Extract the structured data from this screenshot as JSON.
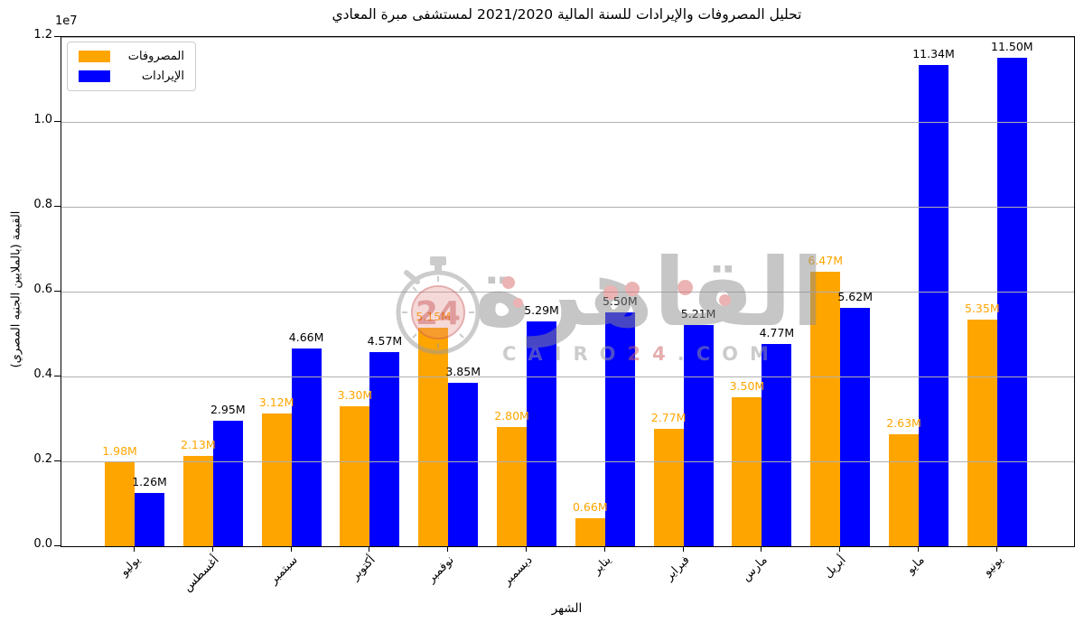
{
  "watermark": {
    "arabic": "القاهرة",
    "latin_prefix": "CAIRO",
    "latin_number": "24",
    "latin_suffix": ".COM",
    "badge": "24"
  },
  "chart_data": {
    "type": "bar",
    "title": "تحليل المصروفات والإيرادات للسنة المالية 2021/2020 لمستشفى مبرة المعادي",
    "xlabel": "الشهر",
    "ylabel": "القيمة (بالملايين الجنيه المصري)",
    "offset_text": "1e7",
    "categories": [
      "يوليو",
      "أغسطس",
      "سبتمبر",
      "أكتوبر",
      "نوفمبر",
      "ديسمبر",
      "يناير",
      "فبراير",
      "مارس",
      "أبريل",
      "مايو",
      "يونيو"
    ],
    "series": [
      {
        "name": "المصروفات",
        "color": "#FFA500",
        "label_color": "#FFA500",
        "values_millions": [
          1.98,
          2.13,
          3.12,
          3.3,
          5.15,
          2.8,
          0.66,
          2.77,
          3.5,
          6.47,
          2.63,
          5.35
        ],
        "labels": [
          "1.98M",
          "2.13M",
          "3.12M",
          "3.30M",
          "5.15M",
          "2.80M",
          "0.66M",
          "2.77M",
          "3.50M",
          "6.47M",
          "2.63M",
          "5.35M"
        ]
      },
      {
        "name": "الإيرادات",
        "color": "#0000FF",
        "label_color": "#000000",
        "values_millions": [
          1.26,
          2.95,
          4.66,
          4.57,
          3.85,
          5.29,
          5.5,
          5.21,
          4.77,
          5.62,
          11.34,
          11.5
        ],
        "labels": [
          "1.26M",
          "2.95M",
          "4.66M",
          "4.57M",
          "3.85M",
          "5.29M",
          "5.50M",
          "5.21M",
          "4.77M",
          "5.62M",
          "11.34M",
          "11.50M"
        ]
      }
    ],
    "ylim": [
      0,
      12000000
    ],
    "yticks": [
      "0.0",
      "0.2",
      "0.4",
      "0.6",
      "0.8",
      "1.0",
      "1.2"
    ],
    "grid": true,
    "grid_color": "#b0b0b0",
    "legend_position": "upper left"
  }
}
